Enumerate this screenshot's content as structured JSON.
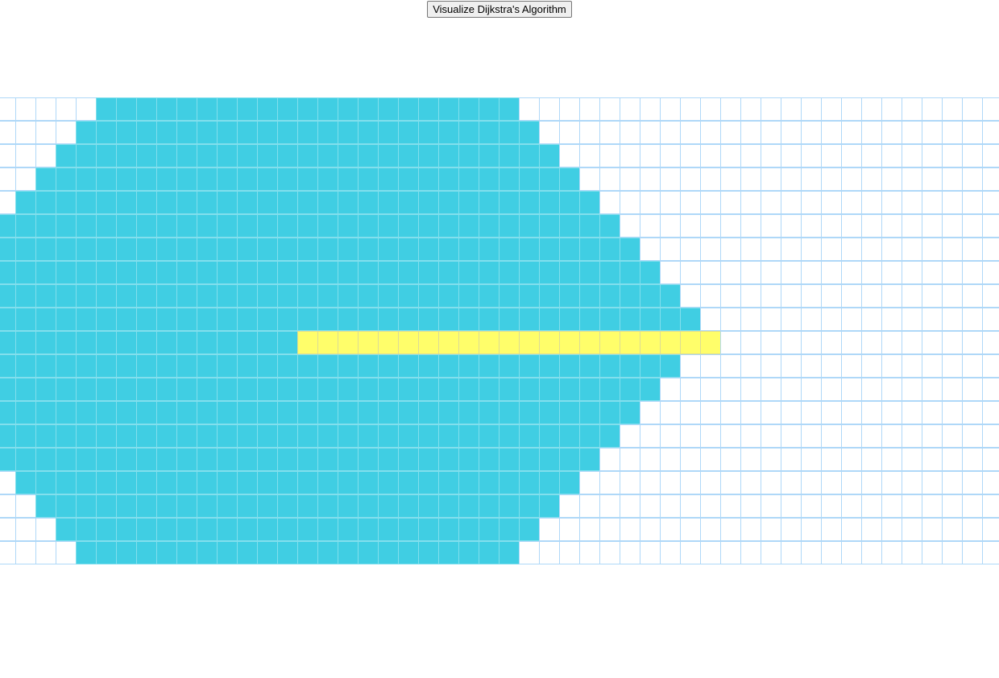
{
  "toolbar": {
    "visualize_label": "Visualize Dijkstra's Algorithm"
  },
  "grid": {
    "rows": 20,
    "cols": 50,
    "colors": {
      "unvisited": "#ffffff",
      "border": "#afd8f8",
      "visited": "#40cee3",
      "path": "#fffe6a"
    },
    "visited_runs": [
      [
        5,
        25
      ],
      [
        4,
        26
      ],
      [
        3,
        27
      ],
      [
        2,
        28
      ],
      [
        1,
        29
      ],
      [
        0,
        30
      ],
      [
        0,
        31
      ],
      [
        0,
        32
      ],
      [
        0,
        33
      ],
      [
        0,
        34
      ],
      [
        0,
        14
      ],
      [
        0,
        33
      ],
      [
        0,
        32
      ],
      [
        0,
        31
      ],
      [
        0,
        30
      ],
      [
        0,
        29
      ],
      [
        1,
        28
      ],
      [
        2,
        27
      ],
      [
        3,
        26
      ],
      [
        4,
        25
      ]
    ],
    "path_run": {
      "row": 10,
      "start": 15,
      "end": 35
    }
  }
}
